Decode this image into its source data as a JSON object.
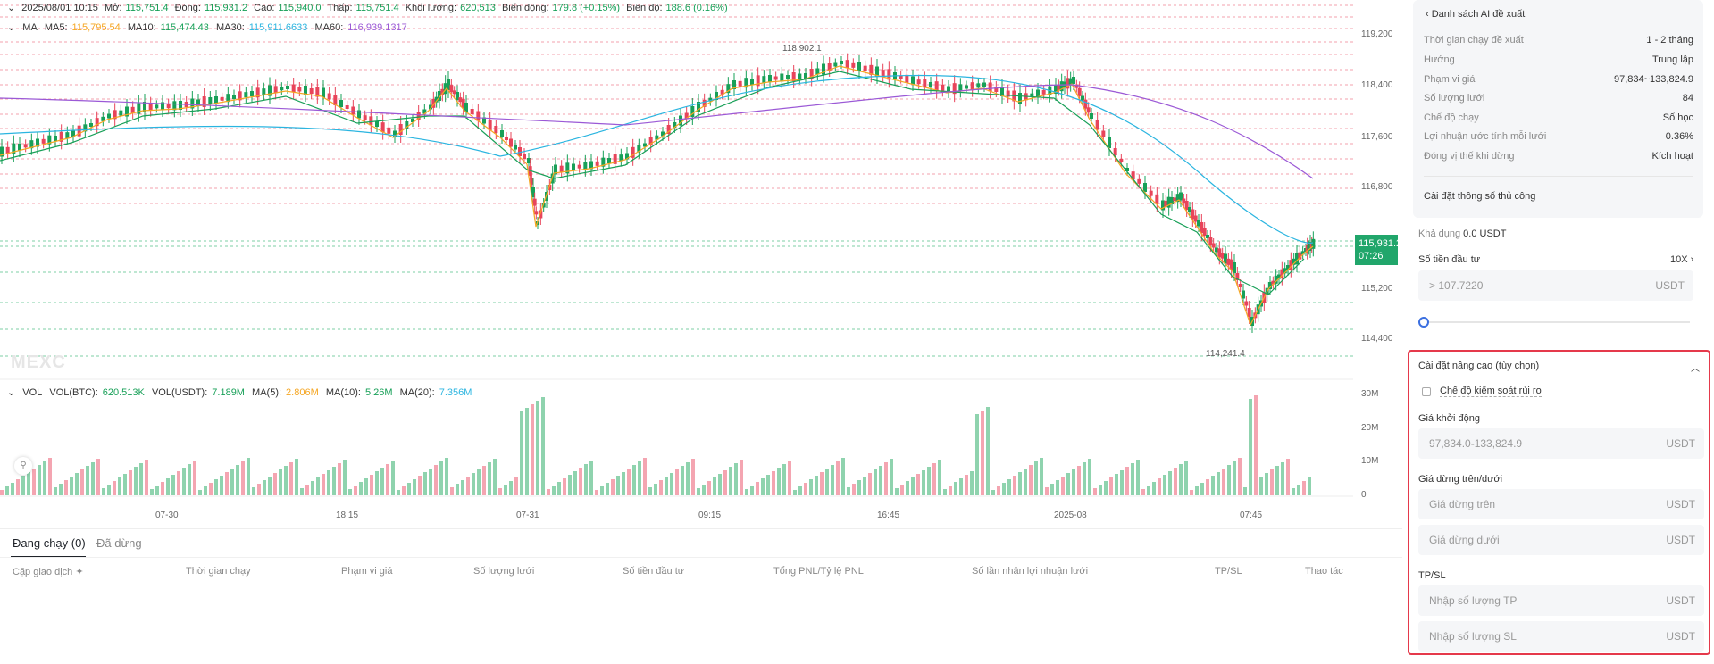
{
  "header": {
    "date": "2025/08/01 10:15",
    "open_label": "Mở:",
    "open": "115,751.4",
    "close_label": "Đóng:",
    "close": "115,931.2",
    "high_label": "Cao:",
    "high": "115,940.0",
    "low_label": "Thấp:",
    "low": "115,751.4",
    "vol_label": "Khối lượng:",
    "vol": "620,513",
    "change_label": "Biến động:",
    "change": "179.8 (+0.15%)",
    "amp_label": "Biên độ:",
    "amp": "188.6 (0.16%)"
  },
  "ma": {
    "label": "MA",
    "ma5_label": "MA5:",
    "ma5": "115,795.54",
    "ma10_label": "MA10:",
    "ma10": "115,474.43",
    "ma30_label": "MA30:",
    "ma30": "115,911.6633",
    "ma60_label": "MA60:",
    "ma60": "116,939.1317"
  },
  "vol": {
    "label": "VOL",
    "btc_label": "VOL(BTC):",
    "btc": "620.513K",
    "usdt_label": "VOL(USDT):",
    "usdt": "7.189M",
    "ma5_label": "MA(5):",
    "ma5": "2.806M",
    "ma10_label": "MA(10):",
    "ma10": "5.26M",
    "ma20_label": "MA(20):",
    "ma20": "7.356M"
  },
  "price_axis": [
    "119,200",
    "118,400",
    "117,600",
    "116,800",
    "115,200",
    "114,400"
  ],
  "vol_axis": [
    "30M",
    "20M",
    "10M",
    "0"
  ],
  "time_axis": [
    "07-30",
    "18:15",
    "07-31",
    "09:15",
    "16:45",
    "2025-08",
    "07:45"
  ],
  "current_price": "115,931.2",
  "countdown": "07:26",
  "high_marker": "118,902.1",
  "low_marker": "114,241.4",
  "watermark": "MEXC",
  "colors": {
    "up": "#18a058",
    "down": "#e8445a",
    "ma5": "#f5a623",
    "ma10": "#18a058",
    "ma30": "#2bb5e0",
    "ma60": "#9b59d6",
    "accent": "#3b6fe0",
    "highlight": "#e5394b"
  },
  "tabs": {
    "running": "Đang chạy (0)",
    "stopped": "Đã dừng"
  },
  "columns": [
    "Cặp giao dịch",
    "Thời gian chạy",
    "Phạm vi giá",
    "Số lượng lưới",
    "Số tiền đầu tư",
    "Tổng PNL/Tỷ lệ PNL",
    "Số lần nhận lợi nhuận lưới",
    "TP/SL",
    "Thao tác"
  ],
  "panel": {
    "back_label": "Danh sách AI đề xuất",
    "params": [
      {
        "k": "Thời gian chạy đề xuất",
        "v": "1 - 2 tháng"
      },
      {
        "k": "Hướng",
        "v": "Trung lập"
      },
      {
        "k": "Phạm vi giá",
        "v": "97,834~133,824.9"
      },
      {
        "k": "Số lượng lưới",
        "v": "84"
      },
      {
        "k": "Chế độ chạy",
        "v": "Số học"
      },
      {
        "k": "Lợi nhuận ước tính mỗi lưới",
        "v": "0.36%"
      },
      {
        "k": "Đóng vị thế khi dừng",
        "v": "Kích hoạt"
      }
    ],
    "manual_label": "Cài đặt thông số thủ công",
    "available_label": "Khả dụng",
    "available_value": "0.0 USDT",
    "invest_label": "Số tiền đầu tư",
    "leverage": "10X",
    "invest_placeholder": "> 107.7220",
    "unit": "USDT",
    "advanced_title": "Cài đặt nâng cao (tùy chọn)",
    "risk_label": "Chế độ kiểm soát rủi ro",
    "start_price_label": "Giá khởi động",
    "start_price_placeholder": "97,834.0-133,824.9",
    "stop_label": "Giá dừng trên/dưới",
    "stop_upper_placeholder": "Giá dừng trên",
    "stop_lower_placeholder": "Giá dừng dưới",
    "tpsl_label": "TP/SL",
    "tp_placeholder": "Nhập số lượng TP",
    "sl_placeholder": "Nhập số lượng SL"
  }
}
